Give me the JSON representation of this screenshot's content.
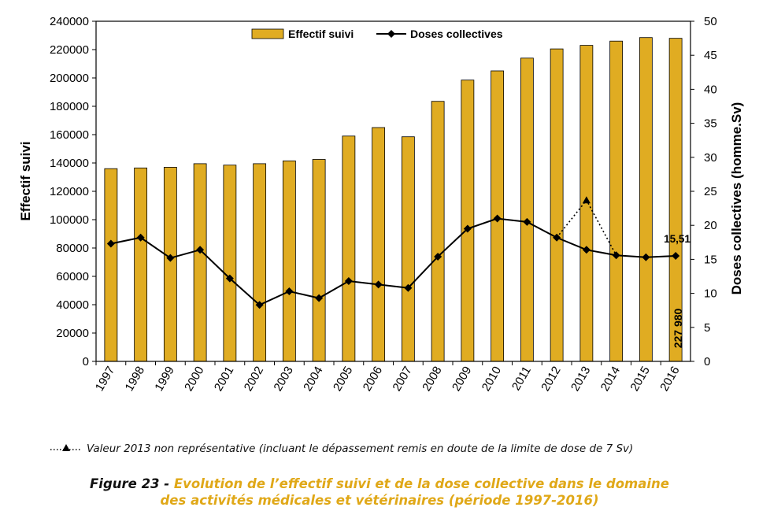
{
  "chart_data": {
    "type": "bar+line",
    "categories": [
      "1997",
      "1998",
      "1999",
      "2000",
      "2001",
      "2002",
      "2003",
      "2004",
      "2005",
      "2006",
      "2007",
      "2008",
      "2009",
      "2010",
      "2011",
      "2012",
      "2013",
      "2014",
      "2015",
      "2016"
    ],
    "series": [
      {
        "name": "Effectif suivi",
        "type": "bar",
        "axis": "left",
        "color": "#e0ac22",
        "values": [
          136000,
          136500,
          137000,
          139500,
          138500,
          139500,
          141500,
          142500,
          159000,
          165000,
          158500,
          183500,
          198500,
          205000,
          214000,
          220500,
          223000,
          226000,
          228500,
          227980
        ]
      },
      {
        "name": "Doses collectives",
        "type": "line",
        "axis": "right",
        "color": "#000000",
        "values": [
          17.3,
          18.2,
          15.2,
          16.4,
          12.2,
          8.3,
          10.3,
          9.3,
          11.8,
          11.3,
          10.8,
          15.4,
          19.5,
          21.0,
          20.5,
          18.2,
          16.4,
          15.6,
          15.3,
          15.51
        ]
      },
      {
        "name": "Valeur 2013 non représentative",
        "type": "line-dotted",
        "axis": "right",
        "color": "#000000",
        "points": [
          [
            "2012",
            18.2
          ],
          [
            "2013",
            23.7
          ],
          [
            "2014",
            15.6
          ]
        ]
      }
    ],
    "ylabel": "Effectif suivi",
    "ylim": [
      0,
      240000
    ],
    "yticks": [
      "0",
      "20000",
      "40000",
      "60000",
      "80000",
      "100000",
      "120000",
      "140000",
      "160000",
      "180000",
      "200000",
      "220000",
      "240000"
    ],
    "y2label": "Doses collectives (homme.Sv)",
    "y2lim": [
      0,
      50
    ],
    "y2ticks": [
      "0",
      "5",
      "10",
      "15",
      "20",
      "25",
      "30",
      "35",
      "40",
      "45",
      "50"
    ],
    "legend": {
      "items": [
        "Effectif suivi",
        "Doses collectives"
      ],
      "position": "top"
    },
    "annotations": {
      "dose_2016": "15,51",
      "effectif_2016": "227 980"
    },
    "grid": false
  },
  "footnote": "Valeur 2013 non représentative (incluant le dépassement remis en doute de la limite de dose de 7 Sv)",
  "caption": {
    "label": "Figure 23 - ",
    "line1": "Evolution de l’effectif suivi et de la dose collective dans le domaine",
    "line2": "des activités médicales et vétérinaires (période 1997-2016)"
  },
  "colors": {
    "bar": "#e0ac22",
    "line": "#000000",
    "caption_accent": "#e0a818"
  }
}
